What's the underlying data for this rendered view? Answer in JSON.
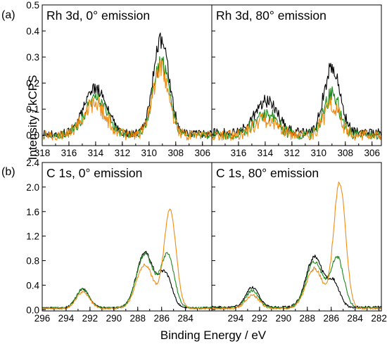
{
  "figure": {
    "ylabel": "Intensity / kCPS",
    "xlabel": "Binding Energy / eV",
    "row_labels": [
      "(a)",
      "(b)"
    ],
    "colors": {
      "black": "#000000",
      "green": "#1a8a1a",
      "orange": "#f08c14"
    }
  },
  "chart_data": [
    {
      "id": "rh-0",
      "type": "line",
      "title": "Rh 3d, 0° emission",
      "row": 0,
      "col": 0,
      "xlim": [
        318,
        305.3
      ],
      "ylim": [
        -0.04,
        0.5
      ],
      "xticks": [
        318,
        316,
        314,
        312,
        310,
        308,
        306
      ],
      "yticks": [
        0.0,
        0.1,
        0.2,
        0.3,
        0.4,
        0.5
      ],
      "ytick_labels": [
        "0.0",
        "0.1",
        "0.2",
        "0.3",
        "0.4",
        "0.5"
      ],
      "series": [
        {
          "color": "black",
          "peaks": [
            [
              314.0,
              0.17,
              0.85
            ],
            [
              309.1,
              0.36,
              0.6
            ]
          ],
          "noise": 0.012,
          "bg": 0.005
        },
        {
          "color": "green",
          "peaks": [
            [
              314.0,
              0.135,
              0.85
            ],
            [
              309.1,
              0.28,
              0.6
            ]
          ],
          "noise": 0.014,
          "bg": 0.0
        },
        {
          "color": "orange",
          "peaks": [
            [
              314.1,
              0.12,
              0.85
            ],
            [
              309.1,
              0.26,
              0.6
            ]
          ],
          "noise": 0.018,
          "bg": 0.0
        }
      ]
    },
    {
      "id": "rh-80",
      "type": "line",
      "title": "Rh 3d, 80° emission",
      "row": 0,
      "col": 1,
      "xlim": [
        318,
        305.3
      ],
      "ylim": [
        -0.04,
        0.5
      ],
      "xticks": [
        316,
        314,
        312,
        310,
        308,
        306
      ],
      "yticks": [
        0.0,
        0.1,
        0.2,
        0.3,
        0.4,
        0.5
      ],
      "ytick_labels": [],
      "series": [
        {
          "color": "black",
          "peaks": [
            [
              313.9,
              0.12,
              0.85
            ],
            [
              309.0,
              0.25,
              0.6
            ]
          ],
          "noise": 0.013,
          "bg": 0.01
        },
        {
          "color": "green",
          "peaks": [
            [
              314.0,
              0.085,
              0.85
            ],
            [
              309.0,
              0.155,
              0.6
            ]
          ],
          "noise": 0.017,
          "bg": 0.0
        },
        {
          "color": "orange",
          "peaks": [
            [
              314.0,
              0.055,
              0.85
            ],
            [
              309.0,
              0.115,
              0.6
            ]
          ],
          "noise": 0.02,
          "bg": 0.0
        }
      ]
    },
    {
      "id": "c-0",
      "type": "line",
      "title": "C 1s, 0° emission",
      "row": 1,
      "col": 0,
      "xlim": [
        296,
        281.8
      ],
      "ylim": [
        -0.02,
        2.4
      ],
      "xticks": [
        296,
        294,
        292,
        290,
        288,
        286,
        284
      ],
      "yticks": [
        0.0,
        0.4,
        0.8,
        1.2,
        1.6,
        2.0,
        2.4
      ],
      "ytick_labels": [
        "0.0",
        "0.4",
        "0.8",
        "1.2",
        "1.6",
        "2.0",
        "2.4"
      ],
      "series": [
        {
          "color": "black",
          "peaks": [
            [
              292.6,
              0.3,
              0.55
            ],
            [
              287.4,
              0.9,
              0.7
            ],
            [
              285.7,
              0.55,
              0.55
            ]
          ],
          "noise": 0.012,
          "bg": 0.03
        },
        {
          "color": "green",
          "peaks": [
            [
              292.6,
              0.31,
              0.55
            ],
            [
              287.4,
              0.88,
              0.7
            ],
            [
              285.5,
              0.87,
              0.55
            ]
          ],
          "noise": 0.012,
          "bg": 0.03
        },
        {
          "color": "orange",
          "peaks": [
            [
              292.6,
              0.27,
              0.55
            ],
            [
              287.4,
              0.72,
              0.7
            ],
            [
              285.3,
              1.6,
              0.5
            ]
          ],
          "noise": 0.012,
          "bg": 0.02
        }
      ]
    },
    {
      "id": "c-80",
      "type": "line",
      "title": "C 1s, 80° emission",
      "row": 1,
      "col": 1,
      "xlim": [
        296,
        281.8
      ],
      "ylim": [
        -0.02,
        2.4
      ],
      "xticks": [
        294,
        292,
        290,
        288,
        286,
        284,
        282
      ],
      "yticks": [
        0.0,
        0.4,
        0.8,
        1.2,
        1.6,
        2.0,
        2.4
      ],
      "ytick_labels": [],
      "series": [
        {
          "color": "black",
          "peaks": [
            [
              292.6,
              0.32,
              0.55
            ],
            [
              287.4,
              0.82,
              0.7
            ],
            [
              285.8,
              0.4,
              0.5
            ]
          ],
          "noise": 0.015,
          "bg": 0.04
        },
        {
          "color": "green",
          "peaks": [
            [
              292.6,
              0.28,
              0.55
            ],
            [
              287.4,
              0.75,
              0.7
            ],
            [
              285.5,
              0.82,
              0.55
            ]
          ],
          "noise": 0.014,
          "bg": 0.03
        },
        {
          "color": "orange",
          "peaks": [
            [
              292.6,
              0.22,
              0.55
            ],
            [
              287.4,
              0.65,
              0.7
            ],
            [
              285.3,
              2.05,
              0.5
            ]
          ],
          "noise": 0.014,
          "bg": 0.02
        }
      ]
    }
  ]
}
